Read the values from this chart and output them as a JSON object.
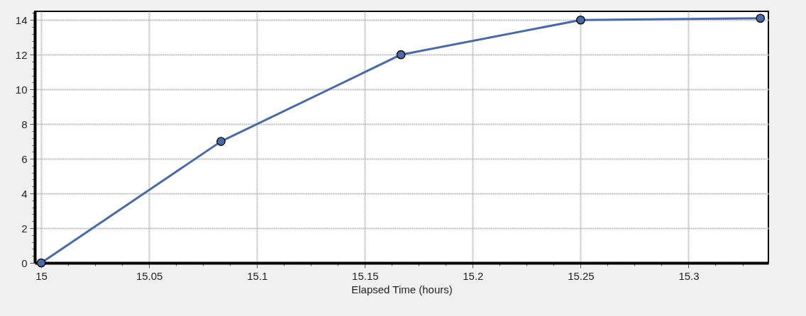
{
  "chart_data": {
    "type": "line",
    "xlabel": "Elapsed Time (hours)",
    "x": [
      15,
      15.0833,
      15.1667,
      15.25,
      15.3333
    ],
    "series": [
      {
        "color": "#4a6aa5",
        "values": [
          0,
          7,
          12,
          14,
          14.1
        ]
      }
    ],
    "xlim": [
      14.997,
      15.337
    ],
    "xticks": [
      15,
      {
        "value": 15.0125,
        "label": null
      },
      {
        "value": 15.025,
        "label": null
      },
      {
        "value": 15.0375,
        "label": null
      },
      15.05,
      {
        "value": 15.0625,
        "label": null
      },
      {
        "value": 15.075,
        "label": null
      },
      {
        "value": 15.0875,
        "label": null
      },
      15.1,
      {
        "value": 15.1125,
        "label": null
      },
      {
        "value": 15.125,
        "label": null
      },
      {
        "value": 15.1375,
        "label": null
      },
      15.15,
      {
        "value": 15.1625,
        "label": null
      },
      {
        "value": 15.175,
        "label": null
      },
      {
        "value": 15.1875,
        "label": null
      },
      15.2,
      {
        "value": 15.2125,
        "label": null
      },
      {
        "value": 15.225,
        "label": null
      },
      {
        "value": 15.2375,
        "label": null
      },
      15.25,
      {
        "value": 15.2625,
        "label": null
      },
      {
        "value": 15.275,
        "label": null
      },
      {
        "value": 15.2875,
        "label": null
      },
      15.3,
      {
        "value": 15.3125,
        "label": null
      },
      {
        "value": 15.325,
        "label": null
      }
    ],
    "ylim": [
      0,
      14.5
    ],
    "yticks": [
      0,
      {
        "value": 0.4,
        "label": null
      },
      {
        "value": 0.8,
        "label": null
      },
      {
        "value": 1.2,
        "label": null
      },
      {
        "value": 1.6,
        "label": null
      },
      2,
      {
        "value": 2.4,
        "label": null
      },
      {
        "value": 2.8,
        "label": null
      },
      {
        "value": 3.2,
        "label": null
      },
      {
        "value": 3.6,
        "label": null
      },
      4,
      {
        "value": 4.4,
        "label": null
      },
      {
        "value": 4.8,
        "label": null
      },
      {
        "value": 5.2,
        "label": null
      },
      {
        "value": 5.6,
        "label": null
      },
      6,
      {
        "value": 6.4,
        "label": null
      },
      {
        "value": 6.8,
        "label": null
      },
      {
        "value": 7.2,
        "label": null
      },
      {
        "value": 7.6,
        "label": null
      },
      8,
      {
        "value": 8.4,
        "label": null
      },
      {
        "value": 8.8,
        "label": null
      },
      {
        "value": 9.2,
        "label": null
      },
      {
        "value": 9.6,
        "label": null
      },
      10,
      {
        "value": 10.4,
        "label": null
      },
      {
        "value": 10.8,
        "label": null
      },
      {
        "value": 11.2,
        "label": null
      },
      {
        "value": 11.6,
        "label": null
      },
      12,
      {
        "value": 12.4,
        "label": null
      },
      {
        "value": 12.8,
        "label": null
      },
      {
        "value": 13.2,
        "label": null
      },
      {
        "value": 13.6,
        "label": null
      },
      14,
      {
        "value": 14.4,
        "label": null
      }
    ],
    "grid": true,
    "marker": "circle",
    "line_style": "solid"
  }
}
